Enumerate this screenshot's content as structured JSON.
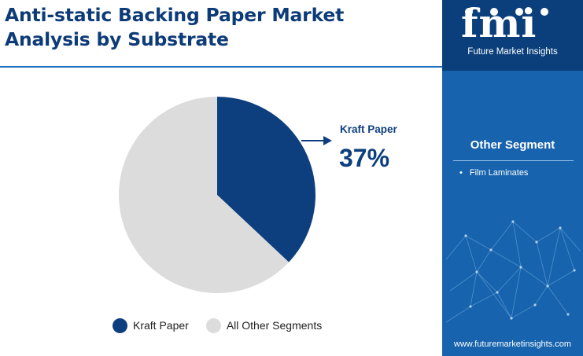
{
  "header": {
    "title": "Anti-static Backing Paper Market Analysis by Substrate"
  },
  "chart_data": {
    "type": "pie",
    "title": "Anti-static Backing Paper Market Analysis by Substrate",
    "slices": [
      {
        "name": "Kraft Paper",
        "value": 37,
        "color": "#0d3f7e"
      },
      {
        "name": "All Other Segments",
        "value": 63,
        "color": "#dcdcdc"
      }
    ],
    "callout": {
      "label": "Kraft Paper",
      "value_label": "37%"
    },
    "legend": {
      "placement": "bottom",
      "entries": [
        "Kraft Paper",
        "All Other Segments"
      ]
    }
  },
  "sidebar": {
    "logo_text": "fmi",
    "logo_subtitle": "Future Market Insights",
    "segment_title": "Other Segment",
    "segment_items": [
      "Film Laminates"
    ],
    "website": "www.futuremarketinsights.com",
    "colors": {
      "panel": "#1763ad",
      "logo_box": "#0b3f7c"
    }
  }
}
